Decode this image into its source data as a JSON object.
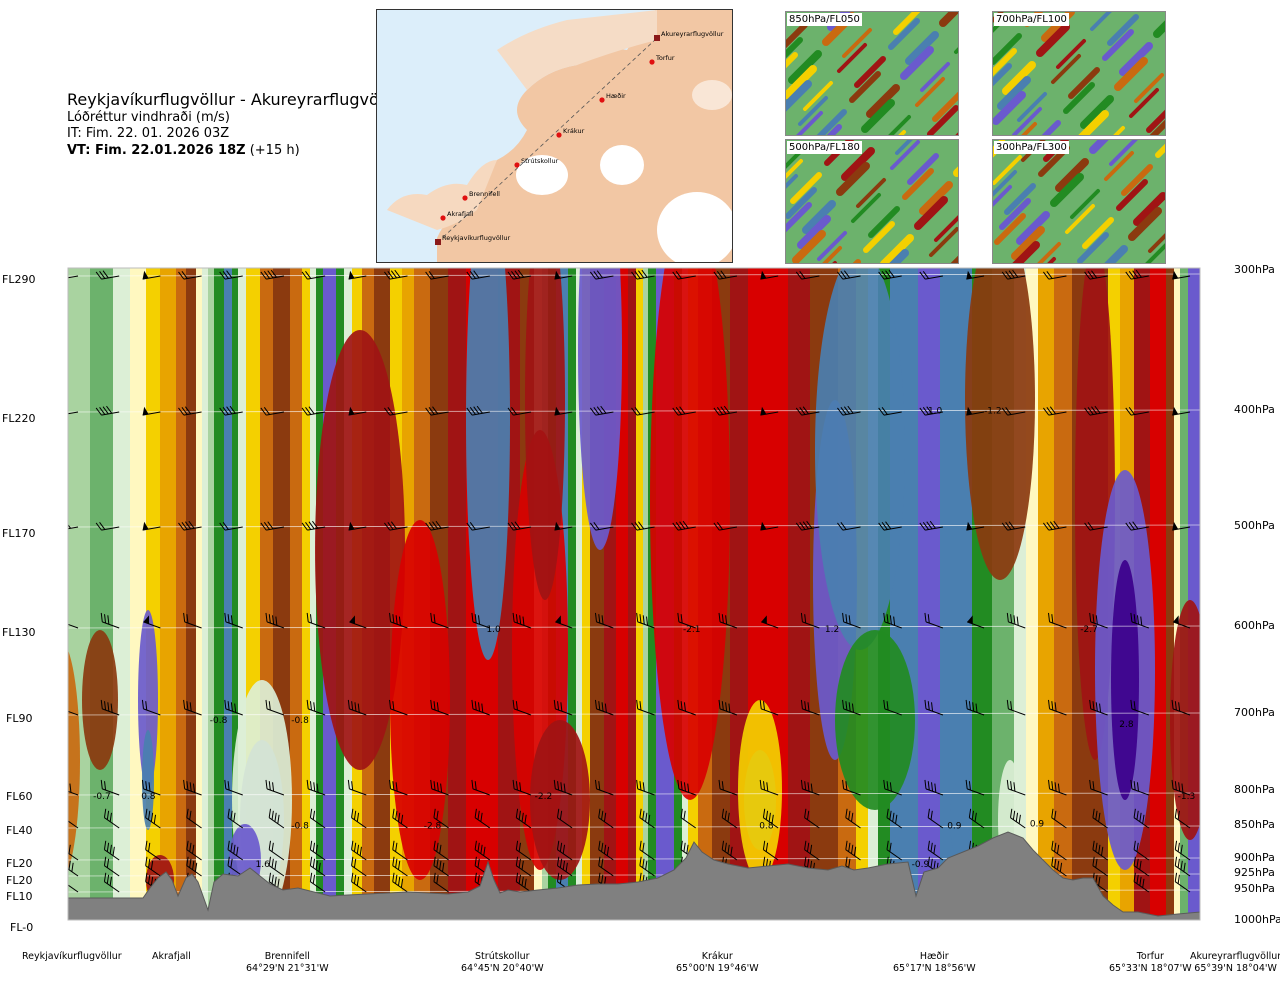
{
  "header": {
    "route": "Reykjavíkurflugvöllur - Akureyrarflugvöllur",
    "variable": "Lóðréttur vindhraði (m/s)",
    "issue_time": "IT: Fim. 22. 01. 2026 03Z",
    "valid_time_bold": "VT: Fim. 22.01.2026 18Z",
    "valid_time_lead": "(+15 h)"
  },
  "map": {
    "points": [
      {
        "name": "Akureyrarflugvöllur"
      },
      {
        "name": "Torfur"
      },
      {
        "name": "Hæðir"
      },
      {
        "name": "Krákur"
      },
      {
        "name": "Strútskollur"
      },
      {
        "name": "Brennifell"
      },
      {
        "name": "Akrafjall"
      },
      {
        "name": "Reykjavíkurflugvöllur"
      }
    ]
  },
  "thumbnails": [
    {
      "label": "850hPa/FL050"
    },
    {
      "label": "700hPa/FL100"
    },
    {
      "label": "500hPa/FL180"
    },
    {
      "label": "300hPa/FL300"
    }
  ],
  "chart_data": {
    "type": "heatmap",
    "title": "Lóðréttur vindhraði (m/s)",
    "flight_levels": [
      "FL290",
      "FL220",
      "FL170",
      "FL130",
      "FL90",
      "FL60",
      "FL40",
      "FL20",
      "FL20",
      "FL10",
      "FL-0"
    ],
    "pressure_levels": [
      "300hPa",
      "400hPa",
      "500hPa",
      "600hPa",
      "700hPa",
      "800hPa",
      "850hPa",
      "900hPa",
      "925hPa",
      "950hPa",
      "1000hPa"
    ],
    "stations": [
      {
        "name": "Reykjavíkurflugvöllur",
        "coord": ""
      },
      {
        "name": "Akrafjall",
        "coord": ""
      },
      {
        "name": "Brennifell",
        "coord": "64°29'N 21°31'W"
      },
      {
        "name": "Strútskollur",
        "coord": "64°45'N 20°40'W"
      },
      {
        "name": "Krákur",
        "coord": "65°00'N 19°46'W"
      },
      {
        "name": "Hæðir",
        "coord": "65°17'N 18°56'W"
      },
      {
        "name": "Torfur",
        "coord": "65°33'N 18°07'W"
      },
      {
        "name": "Akureyrarflugvöllur",
        "coord": "65°39'N 18°04'W"
      }
    ],
    "annotations": [
      {
        "text": "-0.7",
        "dist": 0.03,
        "hpa": 800
      },
      {
        "text": "0.8",
        "dist": 0.071,
        "hpa": 800
      },
      {
        "text": "-0.8",
        "dist": 0.133,
        "hpa": 705
      },
      {
        "text": "-0.8",
        "dist": 0.205,
        "hpa": 705
      },
      {
        "text": "-0.8",
        "dist": 0.205,
        "hpa": 845
      },
      {
        "text": "1.6",
        "dist": 0.172,
        "hpa": 905
      },
      {
        "text": "-2.8",
        "dist": 0.322,
        "hpa": 845
      },
      {
        "text": "1.0",
        "dist": 0.376,
        "hpa": 600
      },
      {
        "text": "-2.2",
        "dist": 0.42,
        "hpa": 800
      },
      {
        "text": "-2.1",
        "dist": 0.551,
        "hpa": 600
      },
      {
        "text": "1.2",
        "dist": 0.675,
        "hpa": 600
      },
      {
        "text": "0.8",
        "dist": 0.617,
        "hpa": 845
      },
      {
        "text": "1.0",
        "dist": 0.766,
        "hpa": 398
      },
      {
        "text": "-1.2",
        "dist": 0.817,
        "hpa": 398
      },
      {
        "text": "0.9",
        "dist": 0.783,
        "hpa": 845
      },
      {
        "text": "-0.9",
        "dist": 0.753,
        "hpa": 905
      },
      {
        "text": "0.9",
        "dist": 0.856,
        "hpa": 842
      },
      {
        "text": "-2.7",
        "dist": 0.902,
        "hpa": 600
      },
      {
        "text": "2.8",
        "dist": 0.935,
        "hpa": 710
      },
      {
        "text": "-1.3",
        "dist": 0.988,
        "hpa": 800
      }
    ],
    "colorscale": [
      "#3c008c",
      "#6a5acd",
      "#4a7fb0",
      "#228b22",
      "#6cb26c",
      "#a9d3a0",
      "#dcefd6",
      "#fff8c0",
      "#f4d000",
      "#e8a400",
      "#c96a10",
      "#8b3a0f",
      "#a01414",
      "#d80000"
    ],
    "legend": "none"
  }
}
